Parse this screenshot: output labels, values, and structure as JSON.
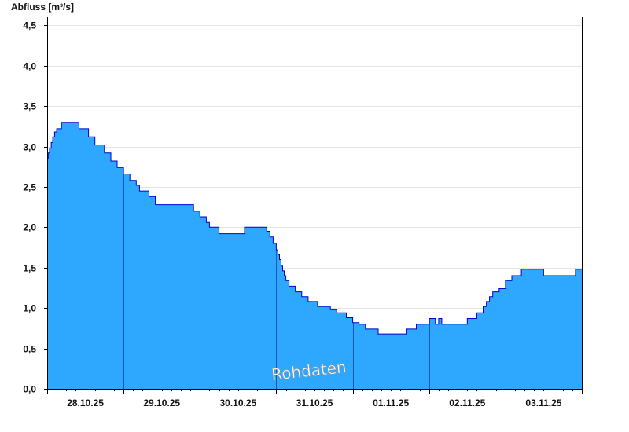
{
  "chart_data": {
    "type": "area",
    "title": "",
    "ylabel": "Abfluss [m³/s]",
    "xlabel": "",
    "ylim": [
      0,
      4.6
    ],
    "yticks": [
      "0,0",
      "0,5",
      "1,0",
      "1,5",
      "2,0",
      "2,5",
      "3,0",
      "3,5",
      "4,0",
      "4,5"
    ],
    "ytick_values": [
      0,
      0.5,
      1.0,
      1.5,
      2.0,
      2.5,
      3.0,
      3.5,
      4.0,
      4.5
    ],
    "x_start": "28.10.25 00:00",
    "x_end": "04.11.25 00:00",
    "xticks": [
      "28.10.25",
      "29.10.25",
      "30.10.25",
      "31.10.25",
      "01.11.25",
      "02.11.25",
      "03.11.25"
    ],
    "grid": true,
    "annotation": "Rohdaten",
    "colors": {
      "fill": "#2ea8ff",
      "line": "#0000cc",
      "grid": "#e4e4e4",
      "axis": "#000000"
    },
    "series": [
      {
        "x": [
          "28.10.25 00:00",
          "28.10.25 00:20",
          "28.10.25 00:45",
          "28.10.25 01:15",
          "28.10.25 01:45",
          "28.10.25 02:20",
          "28.10.25 03:00",
          "28.10.25 03:40",
          "28.10.25 04:30",
          "28.10.25 05:30",
          "28.10.25 06:30",
          "28.10.25 07:00",
          "28.10.25 08:00",
          "28.10.25 09:00",
          "28.10.25 10:00",
          "28.10.25 11:00",
          "28.10.25 12:00",
          "28.10.25 13:00",
          "28.10.25 14:00",
          "28.10.25 15:00",
          "28.10.25 16:00",
          "28.10.25 17:00",
          "28.10.25 18:00",
          "28.10.25 19:00",
          "28.10.25 20:00",
          "28.10.25 21:00",
          "28.10.25 22:00",
          "28.10.25 23:00",
          "29.10.25 00:00",
          "29.10.25 01:00",
          "29.10.25 02:00",
          "29.10.25 03:00",
          "29.10.25 04:00",
          "29.10.25 05:00",
          "29.10.25 06:00",
          "29.10.25 07:00",
          "29.10.25 08:00",
          "29.10.25 09:00",
          "29.10.25 10:00",
          "29.10.25 11:00",
          "29.10.25 12:00",
          "29.10.25 13:00",
          "29.10.25 14:00",
          "29.10.25 15:00",
          "29.10.25 16:00",
          "29.10.25 17:00",
          "29.10.25 18:00",
          "29.10.25 19:00",
          "29.10.25 20:00",
          "29.10.25 21:00",
          "29.10.25 22:00",
          "29.10.25 23:00",
          "30.10.25 00:00",
          "30.10.25 01:00",
          "30.10.25 02:00",
          "30.10.25 03:00",
          "30.10.25 04:00",
          "30.10.25 05:00",
          "30.10.25 06:00",
          "30.10.25 07:00",
          "30.10.25 08:00",
          "30.10.25 09:00",
          "30.10.25 10:00",
          "30.10.25 11:00",
          "30.10.25 12:00",
          "30.10.25 13:00",
          "30.10.25 14:00",
          "30.10.25 15:00",
          "30.10.25 16:00",
          "30.10.25 17:00",
          "30.10.25 18:00",
          "30.10.25 19:00",
          "30.10.25 20:00",
          "30.10.25 21:00",
          "30.10.25 22:00",
          "30.10.25 23:00",
          "31.10.25 00:00",
          "31.10.25 00:30",
          "31.10.25 01:00",
          "31.10.25 01:30",
          "31.10.25 02:00",
          "31.10.25 02:30",
          "31.10.25 03:00",
          "31.10.25 03:30",
          "31.10.25 04:00",
          "31.10.25 05:00",
          "31.10.25 06:00",
          "31.10.25 07:00",
          "31.10.25 08:00",
          "31.10.25 09:00",
          "31.10.25 10:00",
          "31.10.25 11:00",
          "31.10.25 12:00",
          "31.10.25 13:00",
          "31.10.25 14:00",
          "31.10.25 15:00",
          "31.10.25 16:00",
          "31.10.25 17:00",
          "31.10.25 18:00",
          "31.10.25 19:00",
          "31.10.25 20:00",
          "31.10.25 21:00",
          "31.10.25 22:00",
          "31.10.25 23:00",
          "01.11.25 00:00",
          "01.11.25 01:00",
          "01.11.25 02:00",
          "01.11.25 03:00",
          "01.11.25 04:00",
          "01.11.25 05:00",
          "01.11.25 06:00",
          "01.11.25 07:00",
          "01.11.25 08:00",
          "01.11.25 09:00",
          "01.11.25 10:00",
          "01.11.25 11:00",
          "01.11.25 12:00",
          "01.11.25 13:00",
          "01.11.25 14:00",
          "01.11.25 15:00",
          "01.11.25 16:00",
          "01.11.25 17:00",
          "01.11.25 18:00",
          "01.11.25 19:00",
          "01.11.25 20:00",
          "01.11.25 21:00",
          "01.11.25 22:00",
          "01.11.25 23:00",
          "02.11.25 00:00",
          "02.11.25 01:00",
          "02.11.25 02:00",
          "02.11.25 03:00",
          "02.11.25 04:00",
          "02.11.25 05:00",
          "02.11.25 06:00",
          "02.11.25 07:00",
          "02.11.25 08:00",
          "02.11.25 09:00",
          "02.11.25 10:00",
          "02.11.25 11:00",
          "02.11.25 12:00",
          "02.11.25 13:00",
          "02.11.25 14:00",
          "02.11.25 15:00",
          "02.11.25 16:00",
          "02.11.25 17:00",
          "02.11.25 18:00",
          "02.11.25 19:00",
          "02.11.25 20:00",
          "02.11.25 21:00",
          "02.11.25 22:00",
          "02.11.25 23:00",
          "03.11.25 00:00",
          "03.11.25 01:00",
          "03.11.25 02:00",
          "03.11.25 03:00",
          "03.11.25 04:00",
          "03.11.25 05:00",
          "03.11.25 06:00",
          "03.11.25 07:00",
          "03.11.25 08:00",
          "03.11.25 09:00",
          "03.11.25 10:00",
          "03.11.25 11:00",
          "03.11.25 12:00",
          "03.11.25 13:00",
          "03.11.25 14:00",
          "03.11.25 15:00",
          "03.11.25 16:00",
          "03.11.25 17:00",
          "03.11.25 18:00",
          "03.11.25 19:00",
          "03.11.25 20:00",
          "03.11.25 21:00",
          "03.11.25 22:00",
          "03.11.25 23:00",
          "04.11.25 00:00"
        ],
        "values": [
          2.85,
          2.92,
          2.98,
          3.05,
          3.12,
          3.18,
          3.22,
          3.22,
          3.3,
          3.3,
          3.3,
          3.3,
          3.3,
          3.3,
          3.22,
          3.22,
          3.22,
          3.12,
          3.12,
          3.02,
          3.02,
          3.02,
          2.92,
          2.92,
          2.82,
          2.82,
          2.74,
          2.74,
          2.66,
          2.66,
          2.58,
          2.58,
          2.52,
          2.45,
          2.45,
          2.45,
          2.38,
          2.38,
          2.28,
          2.28,
          2.28,
          2.28,
          2.28,
          2.28,
          2.28,
          2.28,
          2.28,
          2.28,
          2.28,
          2.28,
          2.2,
          2.2,
          2.13,
          2.13,
          2.06,
          2.0,
          2.0,
          2.0,
          1.92,
          1.92,
          1.92,
          1.92,
          1.92,
          1.92,
          1.92,
          1.92,
          2.0,
          2.0,
          2.0,
          2.0,
          2.0,
          2.0,
          2.0,
          1.95,
          1.88,
          1.8,
          1.72,
          1.66,
          1.6,
          1.52,
          1.46,
          1.4,
          1.34,
          1.34,
          1.27,
          1.27,
          1.2,
          1.2,
          1.14,
          1.14,
          1.08,
          1.08,
          1.08,
          1.02,
          1.02,
          1.02,
          1.02,
          0.98,
          0.98,
          0.94,
          0.94,
          0.94,
          0.88,
          0.88,
          0.82,
          0.82,
          0.8,
          0.8,
          0.74,
          0.74,
          0.74,
          0.74,
          0.68,
          0.68,
          0.68,
          0.68,
          0.68,
          0.68,
          0.68,
          0.68,
          0.68,
          0.74,
          0.74,
          0.74,
          0.8,
          0.8,
          0.8,
          0.8,
          0.87,
          0.87,
          0.8,
          0.87,
          0.8,
          0.8,
          0.8,
          0.8,
          0.8,
          0.8,
          0.8,
          0.8,
          0.87,
          0.87,
          0.87,
          0.94,
          0.94,
          1.02,
          1.08,
          1.14,
          1.2,
          1.2,
          1.24,
          1.24,
          1.34,
          1.34,
          1.4,
          1.4,
          1.4,
          1.48,
          1.48,
          1.48,
          1.48,
          1.48,
          1.48,
          1.48,
          1.4,
          1.4,
          1.4,
          1.4,
          1.4,
          1.4,
          1.4,
          1.4,
          1.4,
          1.4,
          1.48,
          1.48,
          1.48
        ]
      }
    ]
  }
}
